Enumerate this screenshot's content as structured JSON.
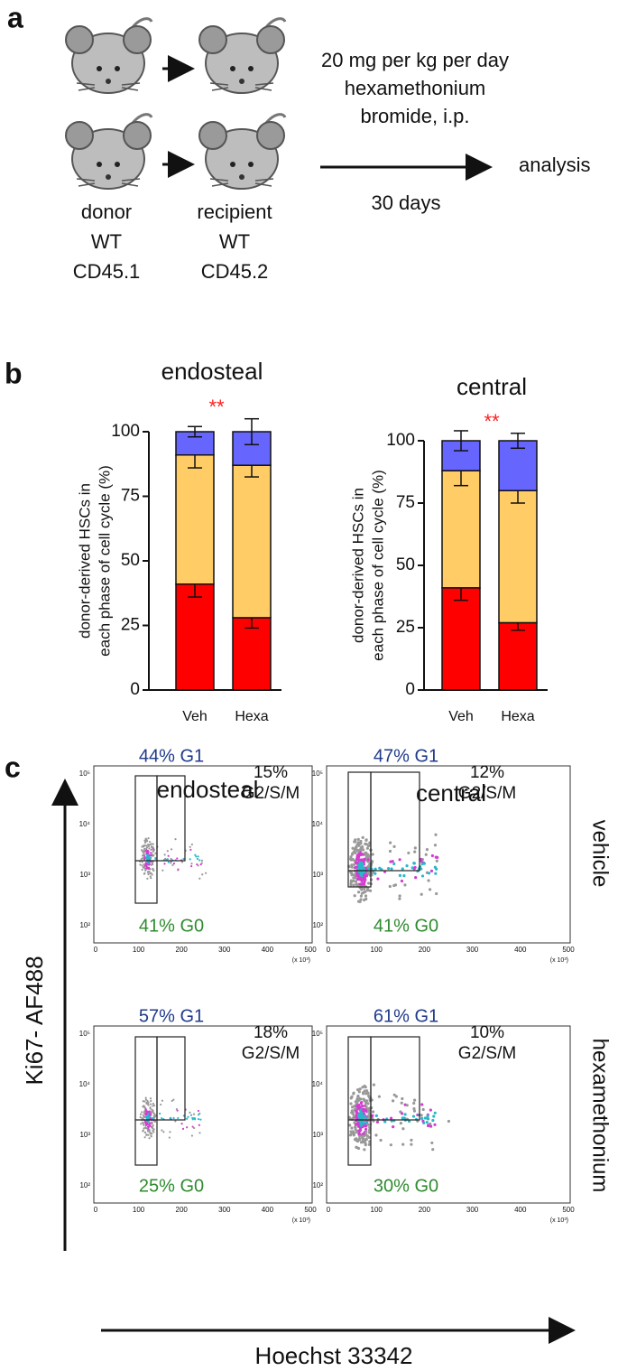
{
  "panel_a": {
    "label": "a",
    "treatment": [
      "20 mg per kg per day",
      "hexamethonium",
      "bromide, i.p."
    ],
    "duration": "30 days",
    "endpoint": "analysis",
    "donor": [
      "donor",
      "WT",
      "CD45.1"
    ],
    "recipient": [
      "recipient",
      "WT",
      "CD45.2"
    ]
  },
  "panel_b": {
    "label": "b"
  },
  "chart_data": [
    {
      "type": "bar",
      "stacked": true,
      "title": "endosteal",
      "annotation": "**",
      "ylabel": [
        "donor-derived HSCs in",
        "each phase of cell cycle (%)"
      ],
      "categories": [
        "Veh",
        "Hexa"
      ],
      "ylim": [
        0,
        100
      ],
      "yticks": [
        0,
        25,
        50,
        75,
        100
      ],
      "series": [
        {
          "color": "#ff0000",
          "values": [
            41,
            28
          ],
          "errors": [
            5,
            4
          ]
        },
        {
          "color": "#ffcc66",
          "values": [
            50,
            59
          ],
          "errors": [
            5,
            4.5
          ]
        },
        {
          "color": "#6666ff",
          "values": [
            9,
            13
          ],
          "errors": [
            2,
            5
          ]
        }
      ]
    },
    {
      "type": "bar",
      "stacked": true,
      "title": "central",
      "annotation": "**",
      "ylabel": [
        "donor-derived HSCs in",
        "each phase of cell cycle (%)"
      ],
      "categories": [
        "Veh",
        "Hexa"
      ],
      "ylim": [
        0,
        100
      ],
      "yticks": [
        0,
        25,
        50,
        75,
        100
      ],
      "series": [
        {
          "color": "#ff0000",
          "values": [
            41,
            27
          ],
          "errors": [
            5,
            3
          ]
        },
        {
          "color": "#ffcc66",
          "values": [
            47,
            53
          ],
          "errors": [
            6,
            5
          ]
        },
        {
          "color": "#6666ff",
          "values": [
            12,
            20
          ],
          "errors": [
            4,
            3
          ]
        }
      ]
    }
  ],
  "panel_c": {
    "label": "c",
    "columns": [
      "endosteal",
      "central"
    ],
    "rows": [
      "vehicle",
      "hexamethonium"
    ],
    "y_axis": "Ki67- AF488",
    "x_axis": "Hoechst 33342",
    "x_ticks": [
      "0",
      "100",
      "200",
      "300",
      "400",
      "500"
    ],
    "x_unit": "(x 10³)",
    "y_ticks": [
      "10²",
      "10³",
      "10⁴",
      "10⁵"
    ],
    "plots": [
      {
        "g1": "44% G1",
        "gsm_pct": "15%",
        "gsm_phase": "G2/S/M",
        "g0": "41% G0"
      },
      {
        "g1": "47% G1",
        "gsm_pct": "12%",
        "gsm_phase": "G2/S/M",
        "g0": "41% G0"
      },
      {
        "g1": "57% G1",
        "gsm_pct": "18%",
        "gsm_phase": "G2/S/M",
        "g0": "25% G0"
      },
      {
        "g1": "61% G1",
        "gsm_pct": "10%",
        "gsm_phase": "G2/S/M",
        "g0": "30% G0"
      }
    ]
  }
}
